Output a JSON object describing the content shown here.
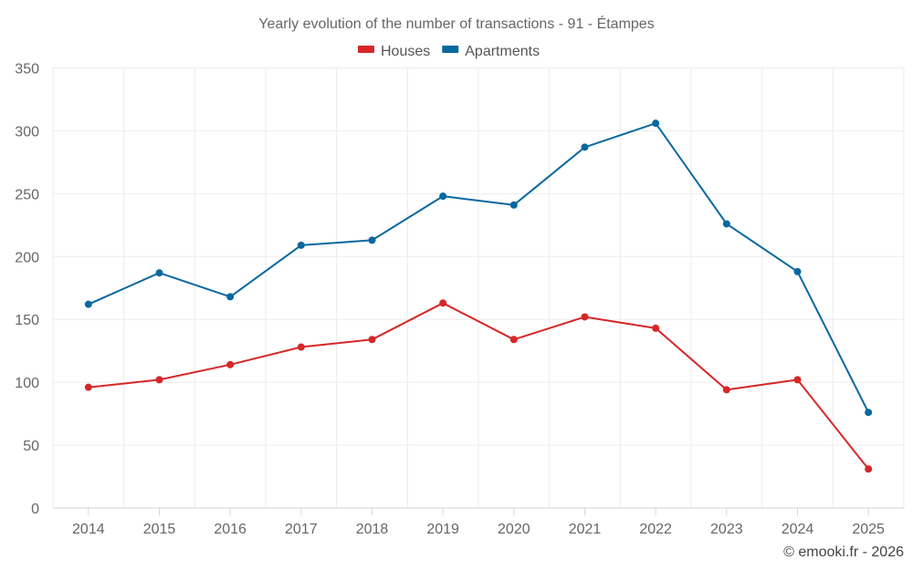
{
  "chart_data": {
    "type": "line",
    "title": "Yearly evolution of the number of transactions - 91 - Étampes",
    "xlabel": "",
    "ylabel": "",
    "categories": [
      "2014",
      "2015",
      "2016",
      "2017",
      "2018",
      "2019",
      "2020",
      "2021",
      "2022",
      "2023",
      "2024",
      "2025"
    ],
    "ylim": [
      0,
      350
    ],
    "yticks": [
      0,
      50,
      100,
      150,
      200,
      250,
      300,
      350
    ],
    "grid": true,
    "legend_position": "top-center",
    "series": [
      {
        "name": "Houses",
        "color": "#d62728",
        "values": [
          96,
          102,
          114,
          128,
          134,
          163,
          134,
          152,
          143,
          94,
          102,
          31
        ]
      },
      {
        "name": "Apartments",
        "color": "#0868a0",
        "values": [
          162,
          187,
          168,
          209,
          213,
          248,
          241,
          287,
          306,
          226,
          188,
          76
        ]
      }
    ],
    "credit": "© emooki.fr - 2026"
  }
}
